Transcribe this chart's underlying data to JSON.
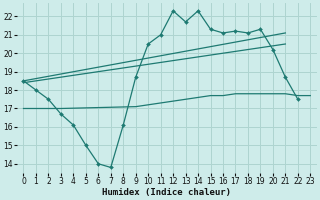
{
  "xlabel": "Humidex (Indice chaleur)",
  "bg_color": "#ceecea",
  "grid_color": "#aed4d0",
  "line_color": "#1e7a72",
  "xlim": [
    -0.5,
    23.5
  ],
  "ylim": [
    13.5,
    22.7
  ],
  "yticks": [
    14,
    15,
    16,
    17,
    18,
    19,
    20,
    21,
    22
  ],
  "xticks": [
    0,
    1,
    2,
    3,
    4,
    5,
    6,
    7,
    8,
    9,
    10,
    11,
    12,
    13,
    14,
    15,
    16,
    17,
    18,
    19,
    20,
    21,
    22,
    23
  ],
  "series1": {
    "x": [
      0,
      1,
      2,
      3,
      4,
      5,
      6,
      7,
      8,
      9,
      10,
      11,
      12,
      13,
      14,
      15,
      16,
      17,
      18,
      19,
      20,
      21,
      22,
      23
    ],
    "y": [
      18.5,
      18.0,
      17.5,
      16.7,
      16.1,
      15.0,
      14.0,
      13.8,
      16.1,
      18.7,
      20.5,
      21.0,
      22.3,
      21.7,
      22.3,
      21.3,
      21.1,
      21.2,
      21.1,
      21.3,
      20.2,
      18.7,
      17.5,
      null
    ]
  },
  "series2_line": {
    "x": [
      0,
      21
    ],
    "y": [
      18.5,
      21.1
    ]
  },
  "series3_line": {
    "x": [
      0,
      21
    ],
    "y": [
      18.4,
      20.5
    ]
  },
  "series4_flat": {
    "x": [
      0,
      3,
      9,
      10,
      11,
      12,
      13,
      14,
      15,
      16,
      17,
      18,
      19,
      20,
      21,
      22,
      23
    ],
    "y": [
      17.0,
      17.0,
      17.1,
      17.2,
      17.3,
      17.4,
      17.5,
      17.6,
      17.7,
      17.7,
      17.8,
      17.8,
      17.8,
      17.8,
      17.8,
      17.7,
      17.7
    ]
  }
}
